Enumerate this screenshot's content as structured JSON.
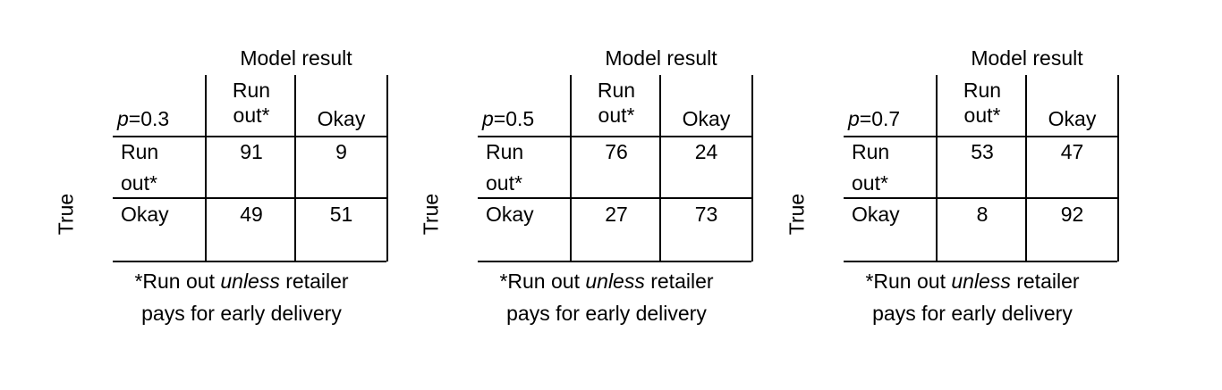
{
  "chart_data": [
    {
      "type": "table",
      "title": "Model result",
      "p_label": "p",
      "p_value": "=0.3",
      "row_axis_label": "True",
      "columns": [
        "Run out*",
        "Okay"
      ],
      "column_lines": [
        "Run",
        "out*"
      ],
      "rows": [
        "Run out*",
        "Okay"
      ],
      "row_lines": [
        "Run",
        "out*"
      ],
      "values": [
        [
          91,
          9
        ],
        [
          49,
          51
        ]
      ],
      "footnote_a": "*Run out ",
      "footnote_em": "unless",
      "footnote_b": " retailer",
      "footnote_c": "pays for early delivery"
    },
    {
      "type": "table",
      "title": "Model result",
      "p_label": "p",
      "p_value": "=0.5",
      "row_axis_label": "True",
      "columns": [
        "Run out*",
        "Okay"
      ],
      "column_lines": [
        "Run",
        "out*"
      ],
      "rows": [
        "Run out*",
        "Okay"
      ],
      "row_lines": [
        "Run",
        "out*"
      ],
      "values": [
        [
          76,
          24
        ],
        [
          27,
          73
        ]
      ],
      "footnote_a": "*Run out ",
      "footnote_em": "unless",
      "footnote_b": " retailer",
      "footnote_c": "pays for early delivery"
    },
    {
      "type": "table",
      "title": "Model result",
      "p_label": "p",
      "p_value": "=0.7",
      "row_axis_label": "True",
      "columns": [
        "Run out*",
        "Okay"
      ],
      "column_lines": [
        "Run",
        "out*"
      ],
      "rows": [
        "Run out*",
        "Okay"
      ],
      "row_lines": [
        "Run",
        "out*"
      ],
      "values": [
        [
          53,
          47
        ],
        [
          8,
          92
        ]
      ],
      "footnote_a": "*Run out ",
      "footnote_em": "unless",
      "footnote_b": " retailer",
      "footnote_c": "pays for early delivery"
    }
  ]
}
